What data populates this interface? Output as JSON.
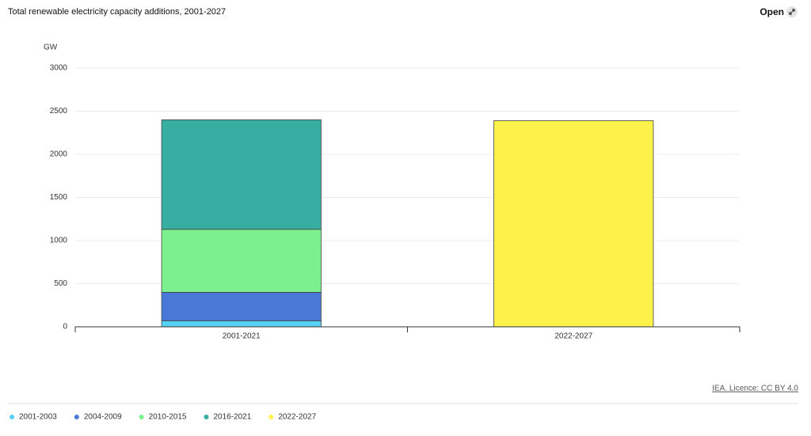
{
  "chart_data": {
    "type": "stacked-bar",
    "title": "Total renewable electricity capacity additions, 2001-2027",
    "y_label": "GW",
    "open_button": "Open",
    "source": "IEA. Licence: CC BY 4.0",
    "categories": [
      "2001-2021",
      "2022-2027"
    ],
    "series": [
      {
        "name": "2001-2003",
        "color": "#55d2f6",
        "values": [
          70,
          null
        ]
      },
      {
        "name": "2004-2009",
        "color": "#4a78d6",
        "values": [
          330,
          null
        ]
      },
      {
        "name": "2010-2015",
        "color": "#7cf08f",
        "values": [
          730,
          null
        ]
      },
      {
        "name": "2016-2021",
        "color": "#38aea3",
        "values": [
          1270,
          null
        ]
      },
      {
        "name": "2022-2027",
        "color": "#fcf24a",
        "values": [
          null,
          2390
        ]
      }
    ],
    "ylim": [
      0,
      3000
    ],
    "yticks": [
      0,
      500,
      1000,
      1500,
      2000,
      2500,
      3000
    ],
    "grid": true
  }
}
